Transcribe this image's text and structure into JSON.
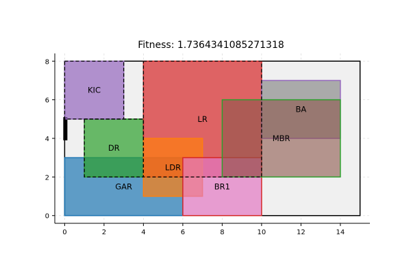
{
  "chart_data": {
    "type": "floorplan",
    "title": "Fitness: 1.7364341085271318",
    "xlim": [
      -0.5,
      15.5
    ],
    "ylim": [
      -0.4,
      8.4
    ],
    "xticks": [
      0,
      2,
      4,
      6,
      8,
      10,
      12,
      14
    ],
    "yticks": [
      0,
      2,
      4,
      6,
      8
    ],
    "grid": true,
    "boundary": {
      "x": 0,
      "y": 0,
      "w": 15,
      "h": 8,
      "fill": "#f0f0f0",
      "stroke": "#000000"
    },
    "door": {
      "x": 0,
      "y": 3.9,
      "w": 0.2,
      "h": 1.2,
      "color": "#000000"
    },
    "zones": [
      {
        "x": 0,
        "y": 5,
        "w": 3,
        "h": 3
      },
      {
        "x": 1,
        "y": 2,
        "w": 3,
        "h": 3
      },
      {
        "x": 4,
        "y": 2,
        "w": 6,
        "h": 6
      }
    ],
    "rooms": [
      {
        "name": "GAR",
        "x": 0,
        "y": 0,
        "w": 6,
        "h": 3,
        "fill": "#1f77b4",
        "stroke": "#1f77b4",
        "alpha": 0.7,
        "label_x": 3.0,
        "label_y": 1.5
      },
      {
        "name": "DR",
        "x": 1,
        "y": 2,
        "w": 3,
        "h": 3,
        "fill": "#2ca02c",
        "stroke": "#2ca02c",
        "alpha": 0.7,
        "label_x": 2.5,
        "label_y": 3.5
      },
      {
        "name": "KIC",
        "x": 0,
        "y": 5,
        "w": 3,
        "h": 3,
        "fill": "#9467bd",
        "stroke": "#9467bd",
        "alpha": 0.7,
        "label_x": 1.5,
        "label_y": 6.5
      },
      {
        "name": "LR",
        "x": 4,
        "y": 2,
        "w": 6,
        "h": 6,
        "fill": "#d62728",
        "stroke": "#d62728",
        "alpha": 0.7,
        "label_x": 7.0,
        "label_y": 5.0
      },
      {
        "name": "LDR",
        "x": 4,
        "y": 1,
        "w": 3,
        "h": 3,
        "fill": "#ff7f0e",
        "stroke": "#ff7f0e",
        "alpha": 0.7,
        "label_x": 5.5,
        "label_y": 2.5
      },
      {
        "name": "BR1",
        "x": 6,
        "y": 0,
        "w": 4,
        "h": 3,
        "fill": "#e377c2",
        "stroke": "#d62728",
        "alpha": 0.7,
        "label_x": 8.0,
        "label_y": 1.5
      },
      {
        "name": "BA",
        "x": 10,
        "y": 4,
        "w": 4,
        "h": 3,
        "fill": "#8c8c8c",
        "stroke": "#9467bd",
        "alpha": 0.7,
        "label_x": 12.0,
        "label_y": 5.5
      },
      {
        "name": "MBR",
        "x": 8,
        "y": 2,
        "w": 6,
        "h": 4,
        "fill": "#8c564b",
        "stroke": "#2ca02c",
        "alpha": 0.6,
        "label_x": 11.0,
        "label_y": 4.0
      }
    ]
  }
}
